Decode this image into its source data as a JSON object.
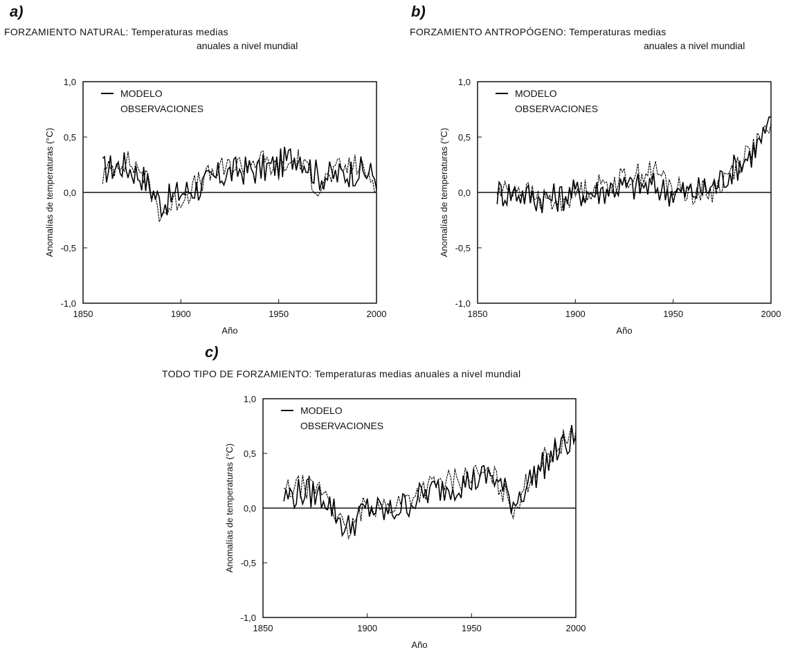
{
  "panels": {
    "a": {
      "letter": "a)",
      "title_line1": "FORZAMIENTO NATURAL: Temperaturas medias",
      "title_line2": "anuales a nivel mundial"
    },
    "b": {
      "letter": "b)",
      "title_line1": "FORZAMIENTO ANTROPÓGENO: Temperaturas medias",
      "title_line2": "anuales a nivel mundial"
    },
    "c": {
      "letter": "c)",
      "title_line1": "TODO TIPO DE FORZAMIENTO: Temperaturas medias anuales a nivel mundial"
    }
  },
  "chart_data": [
    {
      "id": "a",
      "type": "line",
      "xlabel": "Año",
      "ylabel": "Anomalías de temperaturas (°C)",
      "xlim": [
        1850,
        2000
      ],
      "ylim": [
        -1.0,
        1.0
      ],
      "xticks": [
        "1850",
        "1900",
        "1950",
        "2000"
      ],
      "yticks": [
        "1,0",
        "0,5",
        "0,0",
        "-0,5",
        "-1,0"
      ],
      "legend": [
        "MODELO",
        "OBSERVACIONES"
      ],
      "legend_position": "top-left",
      "series": [
        {
          "name": "MODELO",
          "x": [
            1860,
            1870,
            1880,
            1890,
            1900,
            1910,
            1920,
            1930,
            1940,
            1950,
            1960,
            1970,
            1980,
            1990,
            2000
          ],
          "y": [
            0.2,
            0.25,
            0.15,
            -0.1,
            0.0,
            0.05,
            0.15,
            0.2,
            0.2,
            0.25,
            0.35,
            0.15,
            0.15,
            0.2,
            0.15
          ]
        },
        {
          "name": "OBSERVACIONES",
          "x": [
            1860,
            1870,
            1880,
            1890,
            1900,
            1910,
            1920,
            1930,
            1940,
            1950,
            1960,
            1970,
            1980,
            1990,
            2000
          ],
          "y": [
            0.15,
            0.3,
            0.2,
            -0.2,
            -0.05,
            0.1,
            0.2,
            0.25,
            0.3,
            0.2,
            0.3,
            0.05,
            0.2,
            0.25,
            0.1
          ]
        }
      ]
    },
    {
      "id": "b",
      "type": "line",
      "xlabel": "Año",
      "ylabel": "Anomalías de temperaturas (°C)",
      "xlim": [
        1850,
        2000
      ],
      "ylim": [
        -1.0,
        1.0
      ],
      "xticks": [
        "1850",
        "1900",
        "1950",
        "2000"
      ],
      "yticks": [
        "1,0",
        "0,5",
        "0,0",
        "-0,5",
        "-1,0"
      ],
      "legend": [
        "MODELO",
        "OBSERVACIONES"
      ],
      "legend_position": "top-left",
      "series": [
        {
          "name": "MODELO",
          "x": [
            1860,
            1870,
            1880,
            1890,
            1900,
            1910,
            1920,
            1930,
            1940,
            1950,
            1960,
            1970,
            1980,
            1990,
            2000
          ],
          "y": [
            0.0,
            0.0,
            -0.05,
            -0.05,
            0.0,
            0.0,
            0.05,
            0.05,
            0.05,
            0.0,
            0.0,
            0.05,
            0.2,
            0.35,
            0.6
          ]
        },
        {
          "name": "OBSERVACIONES",
          "x": [
            1860,
            1870,
            1880,
            1890,
            1900,
            1910,
            1920,
            1930,
            1940,
            1950,
            1960,
            1970,
            1980,
            1990,
            2000
          ],
          "y": [
            0.0,
            0.05,
            -0.05,
            -0.1,
            0.0,
            0.05,
            0.1,
            0.15,
            0.2,
            0.05,
            0.0,
            0.0,
            0.2,
            0.4,
            0.55
          ]
        }
      ]
    },
    {
      "id": "c",
      "type": "line",
      "xlabel": "Año",
      "ylabel": "Anomalías de temperaturas (°C)",
      "xlim": [
        1850,
        2000
      ],
      "ylim": [
        -1.0,
        1.0
      ],
      "xticks": [
        "1850",
        "1900",
        "1950",
        "2000"
      ],
      "yticks": [
        "1,0",
        "0,5",
        "0,0",
        "-0,5",
        "-1,0"
      ],
      "legend": [
        "MODELO",
        "OBSERVACIONES"
      ],
      "legend_position": "top-left",
      "series": [
        {
          "name": "MODELO",
          "x": [
            1860,
            1870,
            1880,
            1890,
            1900,
            1910,
            1920,
            1930,
            1940,
            1950,
            1960,
            1970,
            1980,
            1990,
            2000
          ],
          "y": [
            0.1,
            0.15,
            0.1,
            -0.2,
            0.0,
            -0.05,
            0.05,
            0.15,
            0.2,
            0.25,
            0.3,
            0.05,
            0.3,
            0.5,
            0.65
          ]
        },
        {
          "name": "OBSERVACIONES",
          "x": [
            1860,
            1870,
            1880,
            1890,
            1900,
            1910,
            1920,
            1930,
            1940,
            1950,
            1960,
            1970,
            1980,
            1990,
            2000
          ],
          "y": [
            0.15,
            0.2,
            0.15,
            -0.25,
            0.05,
            0.0,
            0.1,
            0.2,
            0.25,
            0.3,
            0.3,
            0.0,
            0.35,
            0.55,
            0.7
          ]
        }
      ]
    }
  ]
}
